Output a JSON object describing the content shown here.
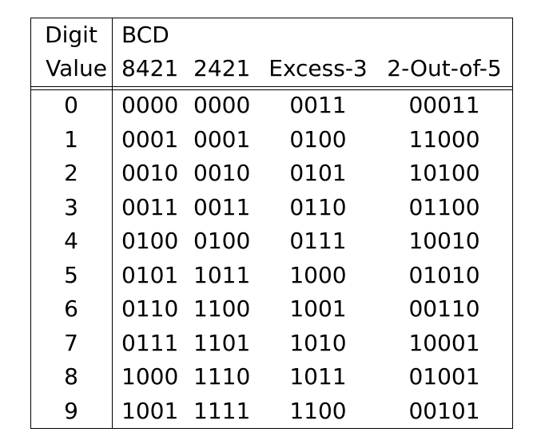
{
  "header": {
    "row1": {
      "digit": "Digit",
      "bcd": "BCD"
    },
    "row2": {
      "value": "Value",
      "c8421": "8421",
      "c2421": "2421",
      "excess3": "Excess-3",
      "two_out_of_five": "2-Out-of-5"
    }
  },
  "rows": [
    {
      "digit": "0",
      "c8421": "0000",
      "c2421": "0000",
      "excess3": "0011",
      "two_out_of_five": "00011"
    },
    {
      "digit": "1",
      "c8421": "0001",
      "c2421": "0001",
      "excess3": "0100",
      "two_out_of_five": "11000"
    },
    {
      "digit": "2",
      "c8421": "0010",
      "c2421": "0010",
      "excess3": "0101",
      "two_out_of_five": "10100"
    },
    {
      "digit": "3",
      "c8421": "0011",
      "c2421": "0011",
      "excess3": "0110",
      "two_out_of_five": "01100"
    },
    {
      "digit": "4",
      "c8421": "0100",
      "c2421": "0100",
      "excess3": "0111",
      "two_out_of_five": "10010"
    },
    {
      "digit": "5",
      "c8421": "0101",
      "c2421": "1011",
      "excess3": "1000",
      "two_out_of_five": "01010"
    },
    {
      "digit": "6",
      "c8421": "0110",
      "c2421": "1100",
      "excess3": "1001",
      "two_out_of_five": "00110"
    },
    {
      "digit": "7",
      "c8421": "0111",
      "c2421": "1101",
      "excess3": "1010",
      "two_out_of_five": "10001"
    },
    {
      "digit": "8",
      "c8421": "1000",
      "c2421": "1110",
      "excess3": "1011",
      "two_out_of_five": "01001"
    },
    {
      "digit": "9",
      "c8421": "1001",
      "c2421": "1111",
      "excess3": "1100",
      "two_out_of_five": "00101"
    }
  ]
}
